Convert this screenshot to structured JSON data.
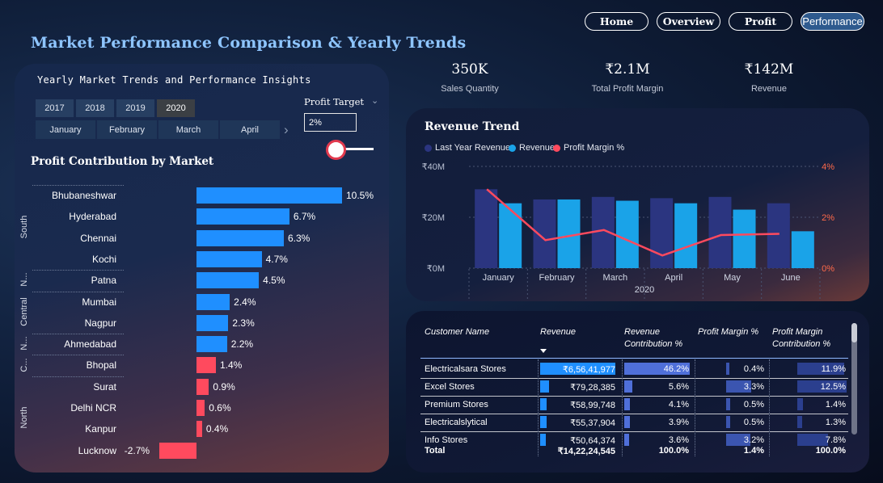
{
  "page": {
    "title": "Market Performance Comparison & Yearly Trends"
  },
  "nav": {
    "home": "Home",
    "overview": "Overview",
    "profit": "Profit",
    "performance": "Performance"
  },
  "filters": {
    "panel_title": "Yearly Market Trends and Performance Insights",
    "years": [
      "2017",
      "2018",
      "2019",
      "2020"
    ],
    "selected_year": "2020",
    "months": [
      "January",
      "February",
      "March",
      "April"
    ],
    "profit_target_label": "Profit Target",
    "profit_target_value": "2%",
    "profit_target_slider": 0.4
  },
  "kpis": [
    {
      "value": "350K",
      "label": "Sales Quantity"
    },
    {
      "value": "₹2.1M",
      "label": "Total Profit Margin"
    },
    {
      "value": "₹142M",
      "label": "Revenue"
    }
  ],
  "profit_chart": {
    "title": "Profit Contribution by Market",
    "groups": [
      {
        "name": "South",
        "markets": [
          "Bhubaneshwar",
          "Hyderabad",
          "Chennai",
          "Kochi"
        ]
      },
      {
        "name": "N...",
        "markets": [
          "Patna"
        ]
      },
      {
        "name": "Central",
        "markets": [
          "Mumbai",
          "Nagpur"
        ]
      },
      {
        "name": "N...",
        "markets": [
          "Ahmedabad"
        ]
      },
      {
        "name": "C...",
        "markets": [
          "Bhopal"
        ]
      },
      {
        "name": "North",
        "markets": [
          "Surat",
          "Delhi NCR",
          "Kanpur",
          "Lucknow"
        ]
      }
    ],
    "positive_color": "#1f8fff",
    "negative_color": "#ff4a5e"
  },
  "revenue_trend": {
    "title": "Revenue Trend",
    "legend": [
      {
        "name": "Last Year Revenue",
        "color": "#2b3580"
      },
      {
        "name": "Revenue",
        "color": "#1aa3e8"
      },
      {
        "name": "Profit Margin %",
        "color": "#ff4a5e"
      }
    ],
    "y_ticks": [
      "₹40M",
      "₹20M",
      "₹0M"
    ],
    "y2_ticks": [
      "4%",
      "2%",
      "0%"
    ],
    "year_label": "2020"
  },
  "chart_data": [
    {
      "type": "bar",
      "title": "Profit Contribution by Market",
      "orientation": "horizontal",
      "categories": [
        "Bhubaneshwar",
        "Hyderabad",
        "Chennai",
        "Kochi",
        "Patna",
        "Mumbai",
        "Nagpur",
        "Ahmedabad",
        "Bhopal",
        "Surat",
        "Delhi NCR",
        "Kanpur",
        "Lucknow"
      ],
      "values": [
        10.5,
        6.7,
        6.3,
        4.7,
        4.5,
        2.4,
        2.3,
        2.2,
        1.4,
        0.9,
        0.6,
        0.4,
        -2.7
      ],
      "labels": [
        "10.5%",
        "6.7%",
        "6.3%",
        "4.7%",
        "4.5%",
        "2.4%",
        "2.3%",
        "2.2%",
        "1.4%",
        "0.9%",
        "0.6%",
        "0.4%",
        "-2.7%"
      ],
      "target": 2
    },
    {
      "type": "bar",
      "title": "Revenue Trend",
      "categories": [
        "January",
        "February",
        "March",
        "April",
        "May",
        "June"
      ],
      "xlabel": "2020",
      "ylim": [
        0,
        40
      ],
      "y2lim": [
        0,
        4
      ],
      "series": [
        {
          "name": "Last Year Revenue",
          "type": "bar",
          "values": [
            31,
            27,
            28,
            27.5,
            28,
            25.5
          ]
        },
        {
          "name": "Revenue",
          "type": "bar",
          "values": [
            25.5,
            27,
            26.5,
            25.5,
            23,
            14.5
          ]
        },
        {
          "name": "Profit Margin %",
          "type": "line",
          "axis": "secondary",
          "values": [
            3.1,
            1.1,
            1.5,
            0.5,
            1.3,
            1.35
          ]
        }
      ]
    }
  ],
  "customer_table": {
    "headers": [
      "Customer Name",
      "Revenue",
      "Revenue Contribution %",
      "Profit Margin %",
      "Profit Margin Contribution %"
    ],
    "rows": [
      {
        "name": "Electricalsara Stores",
        "revenue": "₹6,56,41,977",
        "rev_contrib": "46.2%",
        "margin": "0.4%",
        "margin_contrib": "11.9%",
        "rev_frac": 1.0,
        "contrib_frac": 1.0,
        "margin_frac": 0.04,
        "mc_frac": 0.95
      },
      {
        "name": "Excel Stores",
        "revenue": "₹79,28,385",
        "rev_contrib": "5.6%",
        "margin": "3.3%",
        "margin_contrib": "12.5%",
        "rev_frac": 0.12,
        "contrib_frac": 0.12,
        "margin_frac": 0.31,
        "mc_frac": 1.0
      },
      {
        "name": "Premium Stores",
        "revenue": "₹58,99,748",
        "rev_contrib": "4.1%",
        "margin": "0.5%",
        "margin_contrib": "1.4%",
        "rev_frac": 0.09,
        "contrib_frac": 0.09,
        "margin_frac": 0.05,
        "mc_frac": 0.11
      },
      {
        "name": "Electricalslytical",
        "revenue": "₹55,37,904",
        "rev_contrib": "3.9%",
        "margin": "0.5%",
        "margin_contrib": "1.3%",
        "rev_frac": 0.085,
        "contrib_frac": 0.085,
        "margin_frac": 0.05,
        "mc_frac": 0.1
      },
      {
        "name": "Info Stores",
        "revenue": "₹50,64,374",
        "rev_contrib": "3.6%",
        "margin": "3.2%",
        "margin_contrib": "7.8%",
        "rev_frac": 0.08,
        "contrib_frac": 0.08,
        "margin_frac": 0.3,
        "mc_frac": 0.62
      }
    ],
    "total": {
      "name": "Total",
      "revenue": "₹14,22,24,545",
      "rev_contrib": "100.0%",
      "margin": "1.4%",
      "margin_contrib": "100.0%"
    }
  }
}
